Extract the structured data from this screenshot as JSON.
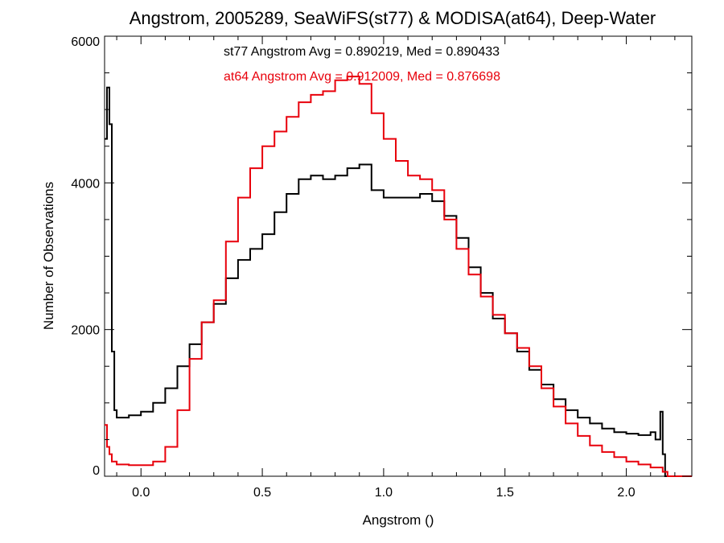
{
  "chart_data": {
    "type": "line",
    "title": "Angstrom, 2005289, SeaWiFS(st77) & MODISA(at64), Deep-Water",
    "xlabel": "Angstrom ()",
    "ylabel": "Number of Observations",
    "xlim": [
      -0.15,
      2.27
    ],
    "ylim": [
      0,
      6000
    ],
    "grid": false,
    "x_ticks": [
      "0.0",
      "0.5",
      "1.0",
      "1.5",
      "2.0"
    ],
    "y_ticks": [
      "0",
      "2000",
      "4000",
      "6000"
    ],
    "legend": [
      {
        "text": "st77 Angstrom Avg = 0.890219, Med = 0.890433",
        "color": "#000000"
      },
      {
        "text": "at64 Angstrom Avg = 0.912009, Med = 0.876698",
        "color": "#e8000b"
      }
    ],
    "series": [
      {
        "color": "#000000",
        "style": "step",
        "x": [
          -0.15,
          -0.14,
          -0.13,
          -0.12,
          -0.11,
          -0.1,
          -0.05,
          0.0,
          0.05,
          0.1,
          0.15,
          0.2,
          0.25,
          0.3,
          0.35,
          0.4,
          0.45,
          0.5,
          0.55,
          0.6,
          0.65,
          0.7,
          0.75,
          0.8,
          0.85,
          0.9,
          0.95,
          1.0,
          1.05,
          1.1,
          1.15,
          1.2,
          1.25,
          1.3,
          1.35,
          1.4,
          1.45,
          1.5,
          1.55,
          1.6,
          1.65,
          1.7,
          1.75,
          1.8,
          1.85,
          1.9,
          1.95,
          2.0,
          2.05,
          2.1,
          2.12,
          2.14,
          2.15,
          2.16,
          2.17,
          2.27
        ],
        "y": [
          4600,
          5300,
          4800,
          1700,
          900,
          800,
          830,
          880,
          1000,
          1200,
          1500,
          1800,
          2100,
          2350,
          2700,
          2950,
          3100,
          3300,
          3600,
          3850,
          4050,
          4100,
          4050,
          4100,
          4200,
          4250,
          3900,
          3800,
          3800,
          3800,
          3850,
          3750,
          3550,
          3250,
          2850,
          2500,
          2150,
          1950,
          1700,
          1450,
          1250,
          1050,
          900,
          800,
          720,
          650,
          600,
          580,
          560,
          600,
          500,
          880,
          300,
          0,
          0,
          0
        ]
      },
      {
        "color": "#e8000b",
        "style": "step",
        "x": [
          -0.15,
          -0.14,
          -0.13,
          -0.12,
          -0.1,
          -0.05,
          0.0,
          0.05,
          0.1,
          0.15,
          0.2,
          0.25,
          0.3,
          0.35,
          0.4,
          0.45,
          0.5,
          0.55,
          0.6,
          0.65,
          0.7,
          0.75,
          0.8,
          0.85,
          0.9,
          0.95,
          1.0,
          1.05,
          1.1,
          1.15,
          1.2,
          1.25,
          1.3,
          1.35,
          1.4,
          1.45,
          1.5,
          1.55,
          1.6,
          1.65,
          1.7,
          1.75,
          1.8,
          1.85,
          1.9,
          1.95,
          2.0,
          2.05,
          2.1,
          2.15,
          2.17,
          2.27
        ],
        "y": [
          700,
          400,
          300,
          200,
          160,
          150,
          150,
          200,
          400,
          900,
          1600,
          2100,
          2400,
          3200,
          3800,
          4200,
          4500,
          4700,
          4900,
          5100,
          5200,
          5250,
          5400,
          5450,
          5350,
          4950,
          4600,
          4300,
          4100,
          4050,
          3900,
          3500,
          3100,
          2750,
          2450,
          2200,
          1950,
          1750,
          1500,
          1200,
          950,
          720,
          550,
          420,
          330,
          260,
          200,
          160,
          120,
          60,
          0,
          0
        ]
      }
    ]
  }
}
